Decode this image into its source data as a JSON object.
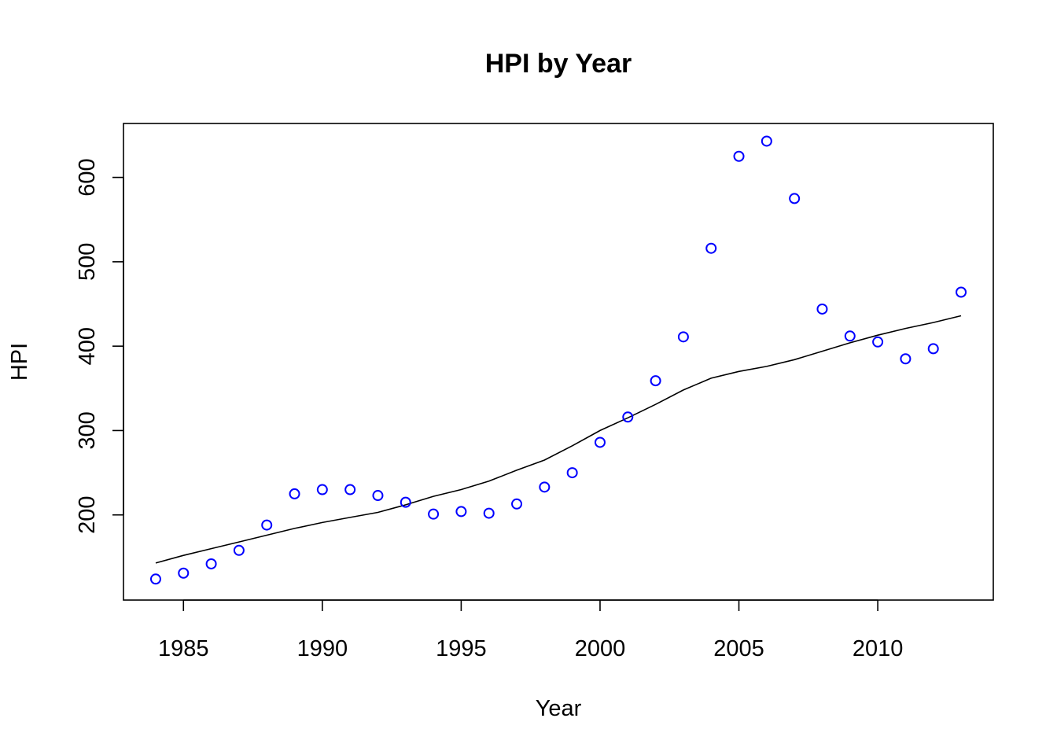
{
  "chart_data": {
    "type": "scatter",
    "title": "HPI by Year",
    "xlabel": "Year",
    "ylabel": "HPI",
    "xlim": [
      1984,
      2013
    ],
    "ylim": [
      120,
      643
    ],
    "x_ticks": [
      1985,
      1990,
      1995,
      2000,
      2005,
      2010
    ],
    "y_ticks": [
      200,
      300,
      400,
      500,
      600
    ],
    "grid": false,
    "point_color": "#0000FF",
    "line_color": "#000000",
    "points": {
      "x": [
        1984,
        1985,
        1986,
        1987,
        1988,
        1989,
        1990,
        1991,
        1992,
        1993,
        1994,
        1995,
        1996,
        1997,
        1998,
        1999,
        2000,
        2001,
        2002,
        2003,
        2004,
        2005,
        2006,
        2007,
        2008,
        2009,
        2010,
        2011,
        2012,
        2013
      ],
      "y": [
        124,
        131,
        142,
        158,
        188,
        225,
        230,
        230,
        223,
        215,
        201,
        204,
        202,
        213,
        233,
        250,
        286,
        316,
        359,
        411,
        516,
        625,
        643,
        575,
        444,
        412,
        405,
        385,
        397,
        464
      ]
    },
    "trend_line": {
      "x": [
        1984,
        1985,
        1986,
        1987,
        1988,
        1989,
        1990,
        1991,
        1992,
        1993,
        1994,
        1995,
        1996,
        1997,
        1998,
        1999,
        2000,
        2001,
        2002,
        2003,
        2004,
        2005,
        2006,
        2007,
        2008,
        2009,
        2010,
        2011,
        2012,
        2013
      ],
      "y": [
        143,
        152,
        160,
        168,
        176,
        184,
        191,
        197,
        203,
        212,
        222,
        230,
        240,
        253,
        265,
        282,
        300,
        315,
        331,
        348,
        362,
        370,
        376,
        384,
        394,
        404,
        413,
        421,
        428,
        436
      ]
    }
  }
}
